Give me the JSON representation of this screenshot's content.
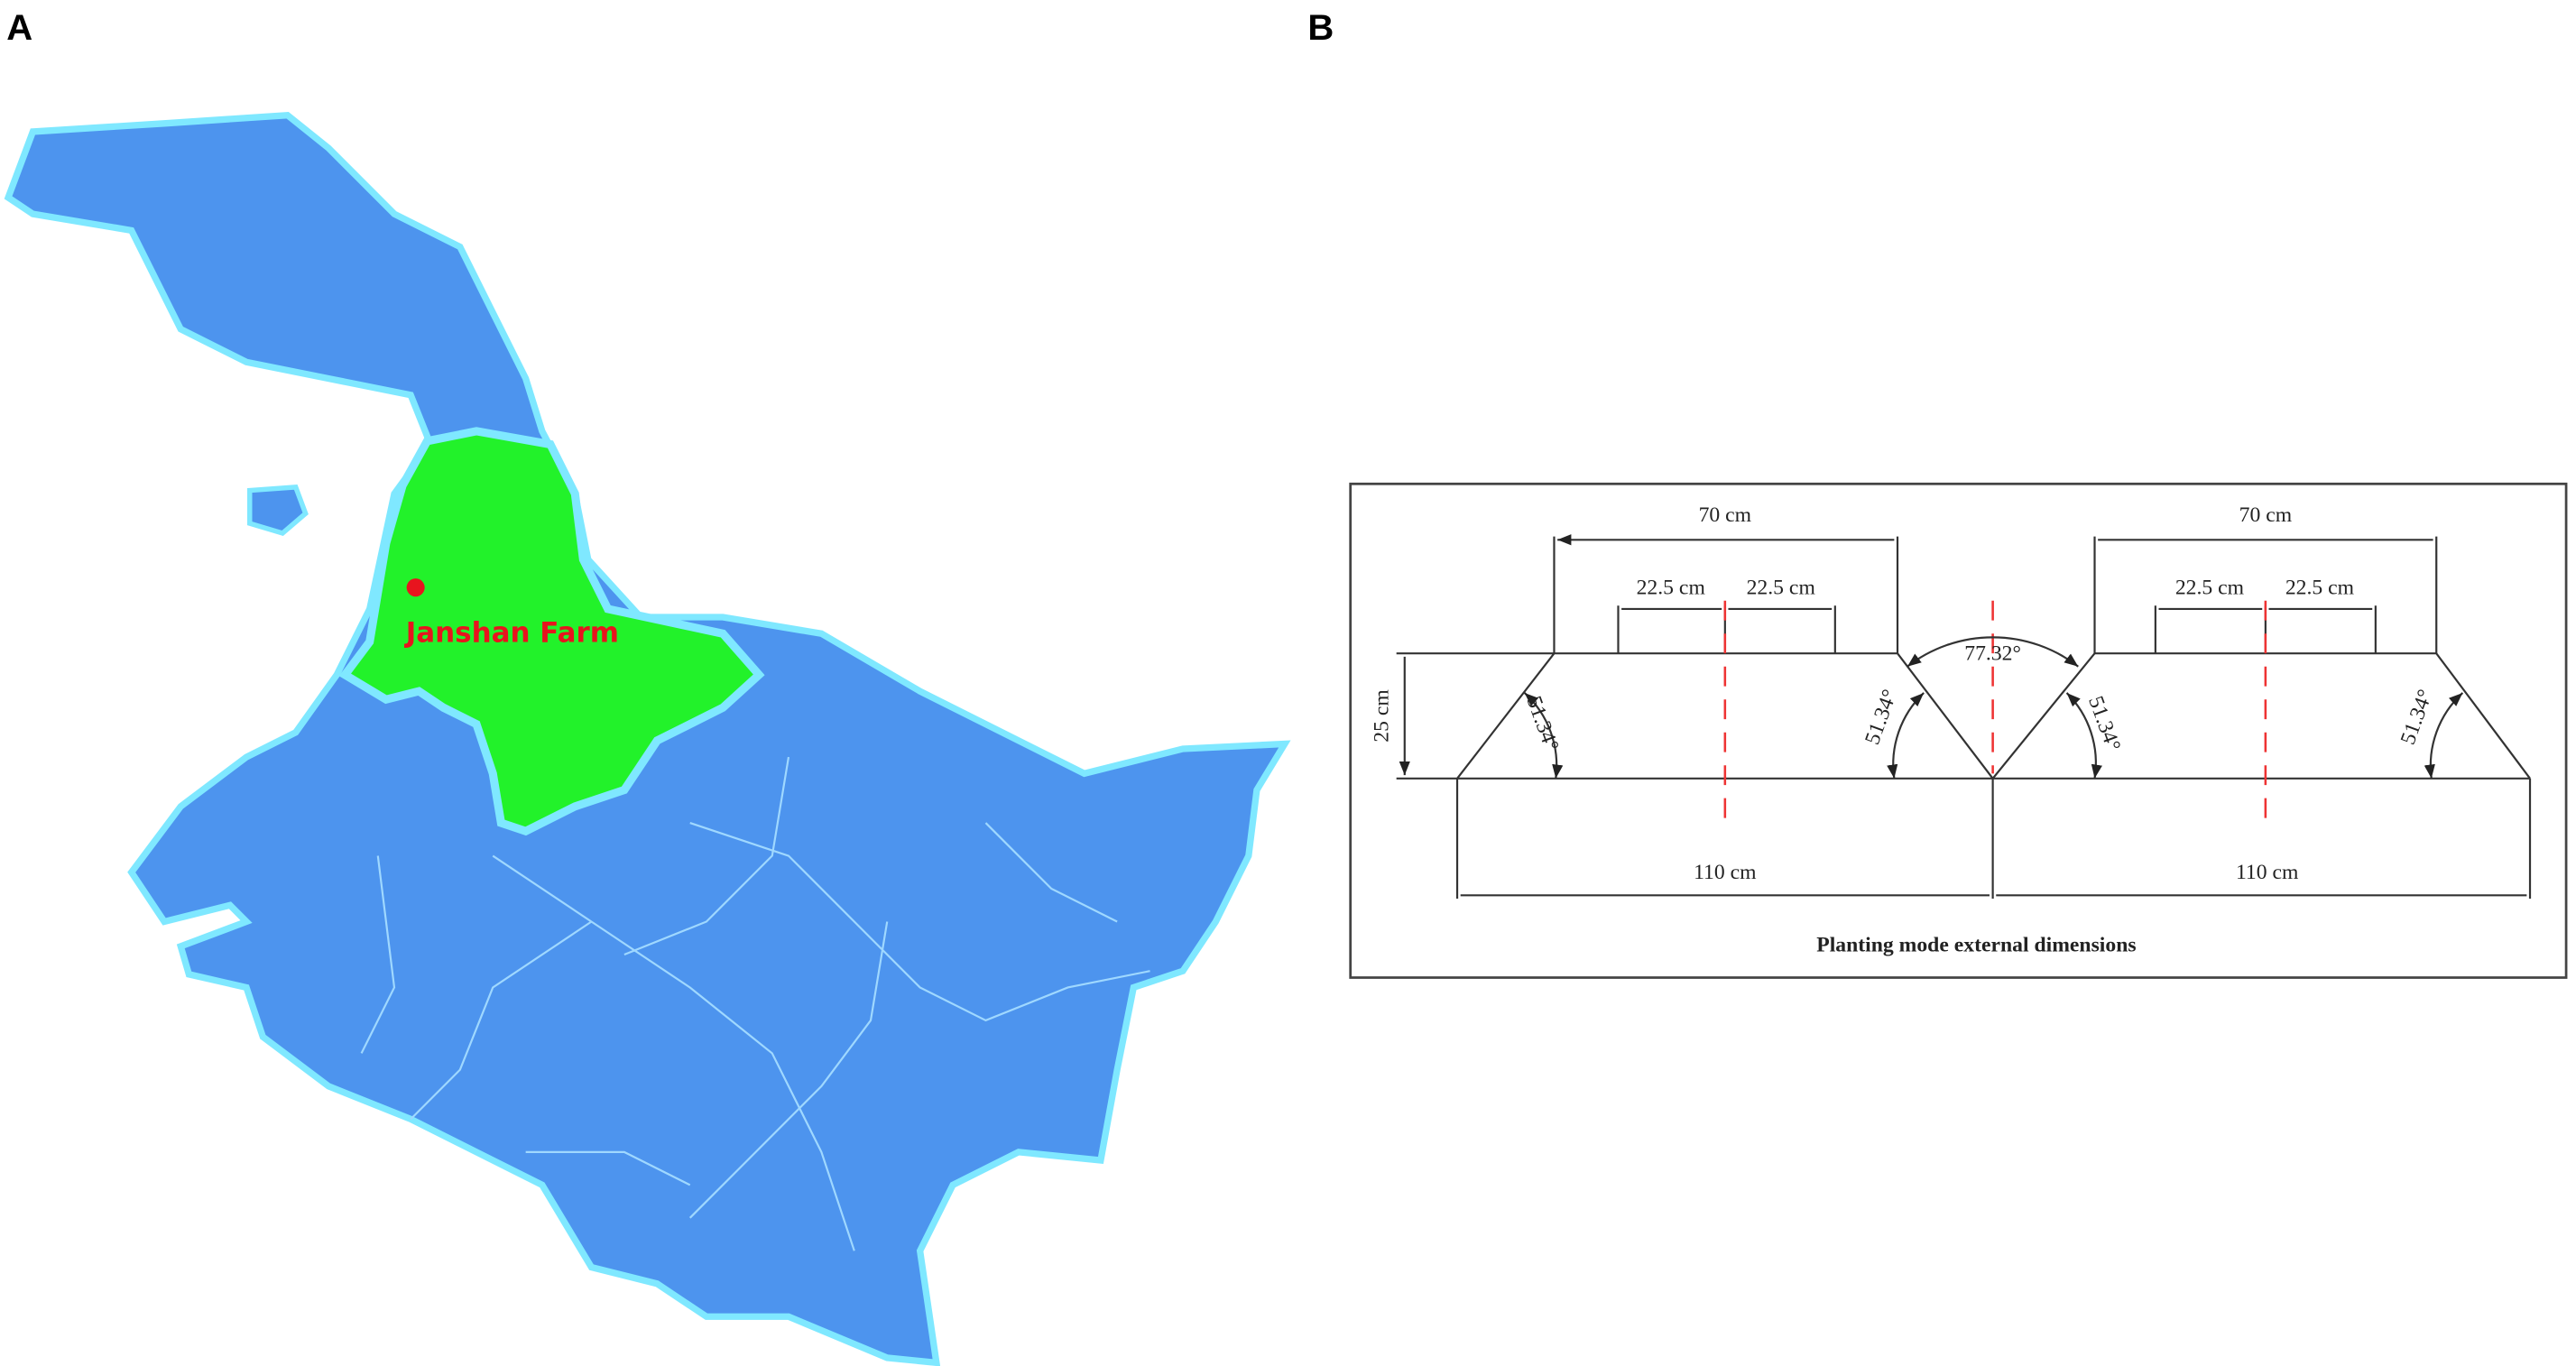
{
  "panels": {
    "a": {
      "label": "A",
      "marker_label": "Janshan Farm"
    },
    "b": {
      "label": "B",
      "caption": "Planting mode external dimensions",
      "height": "25 cm",
      "valley_angle": "77.32°",
      "left": {
        "top_width": "70 cm",
        "half_row_left": "22.5 cm",
        "half_row_right": "22.5 cm",
        "bottom_width": "110 cm",
        "outer_angle": "51.34°",
        "inner_angle": "51.34°"
      },
      "right": {
        "top_width": "70 cm",
        "half_row_left": "22.5 cm",
        "half_row_right": "22.5 cm",
        "bottom_width": "110 cm",
        "outer_angle": "51.34°",
        "inner_angle": "51.34°"
      }
    }
  }
}
